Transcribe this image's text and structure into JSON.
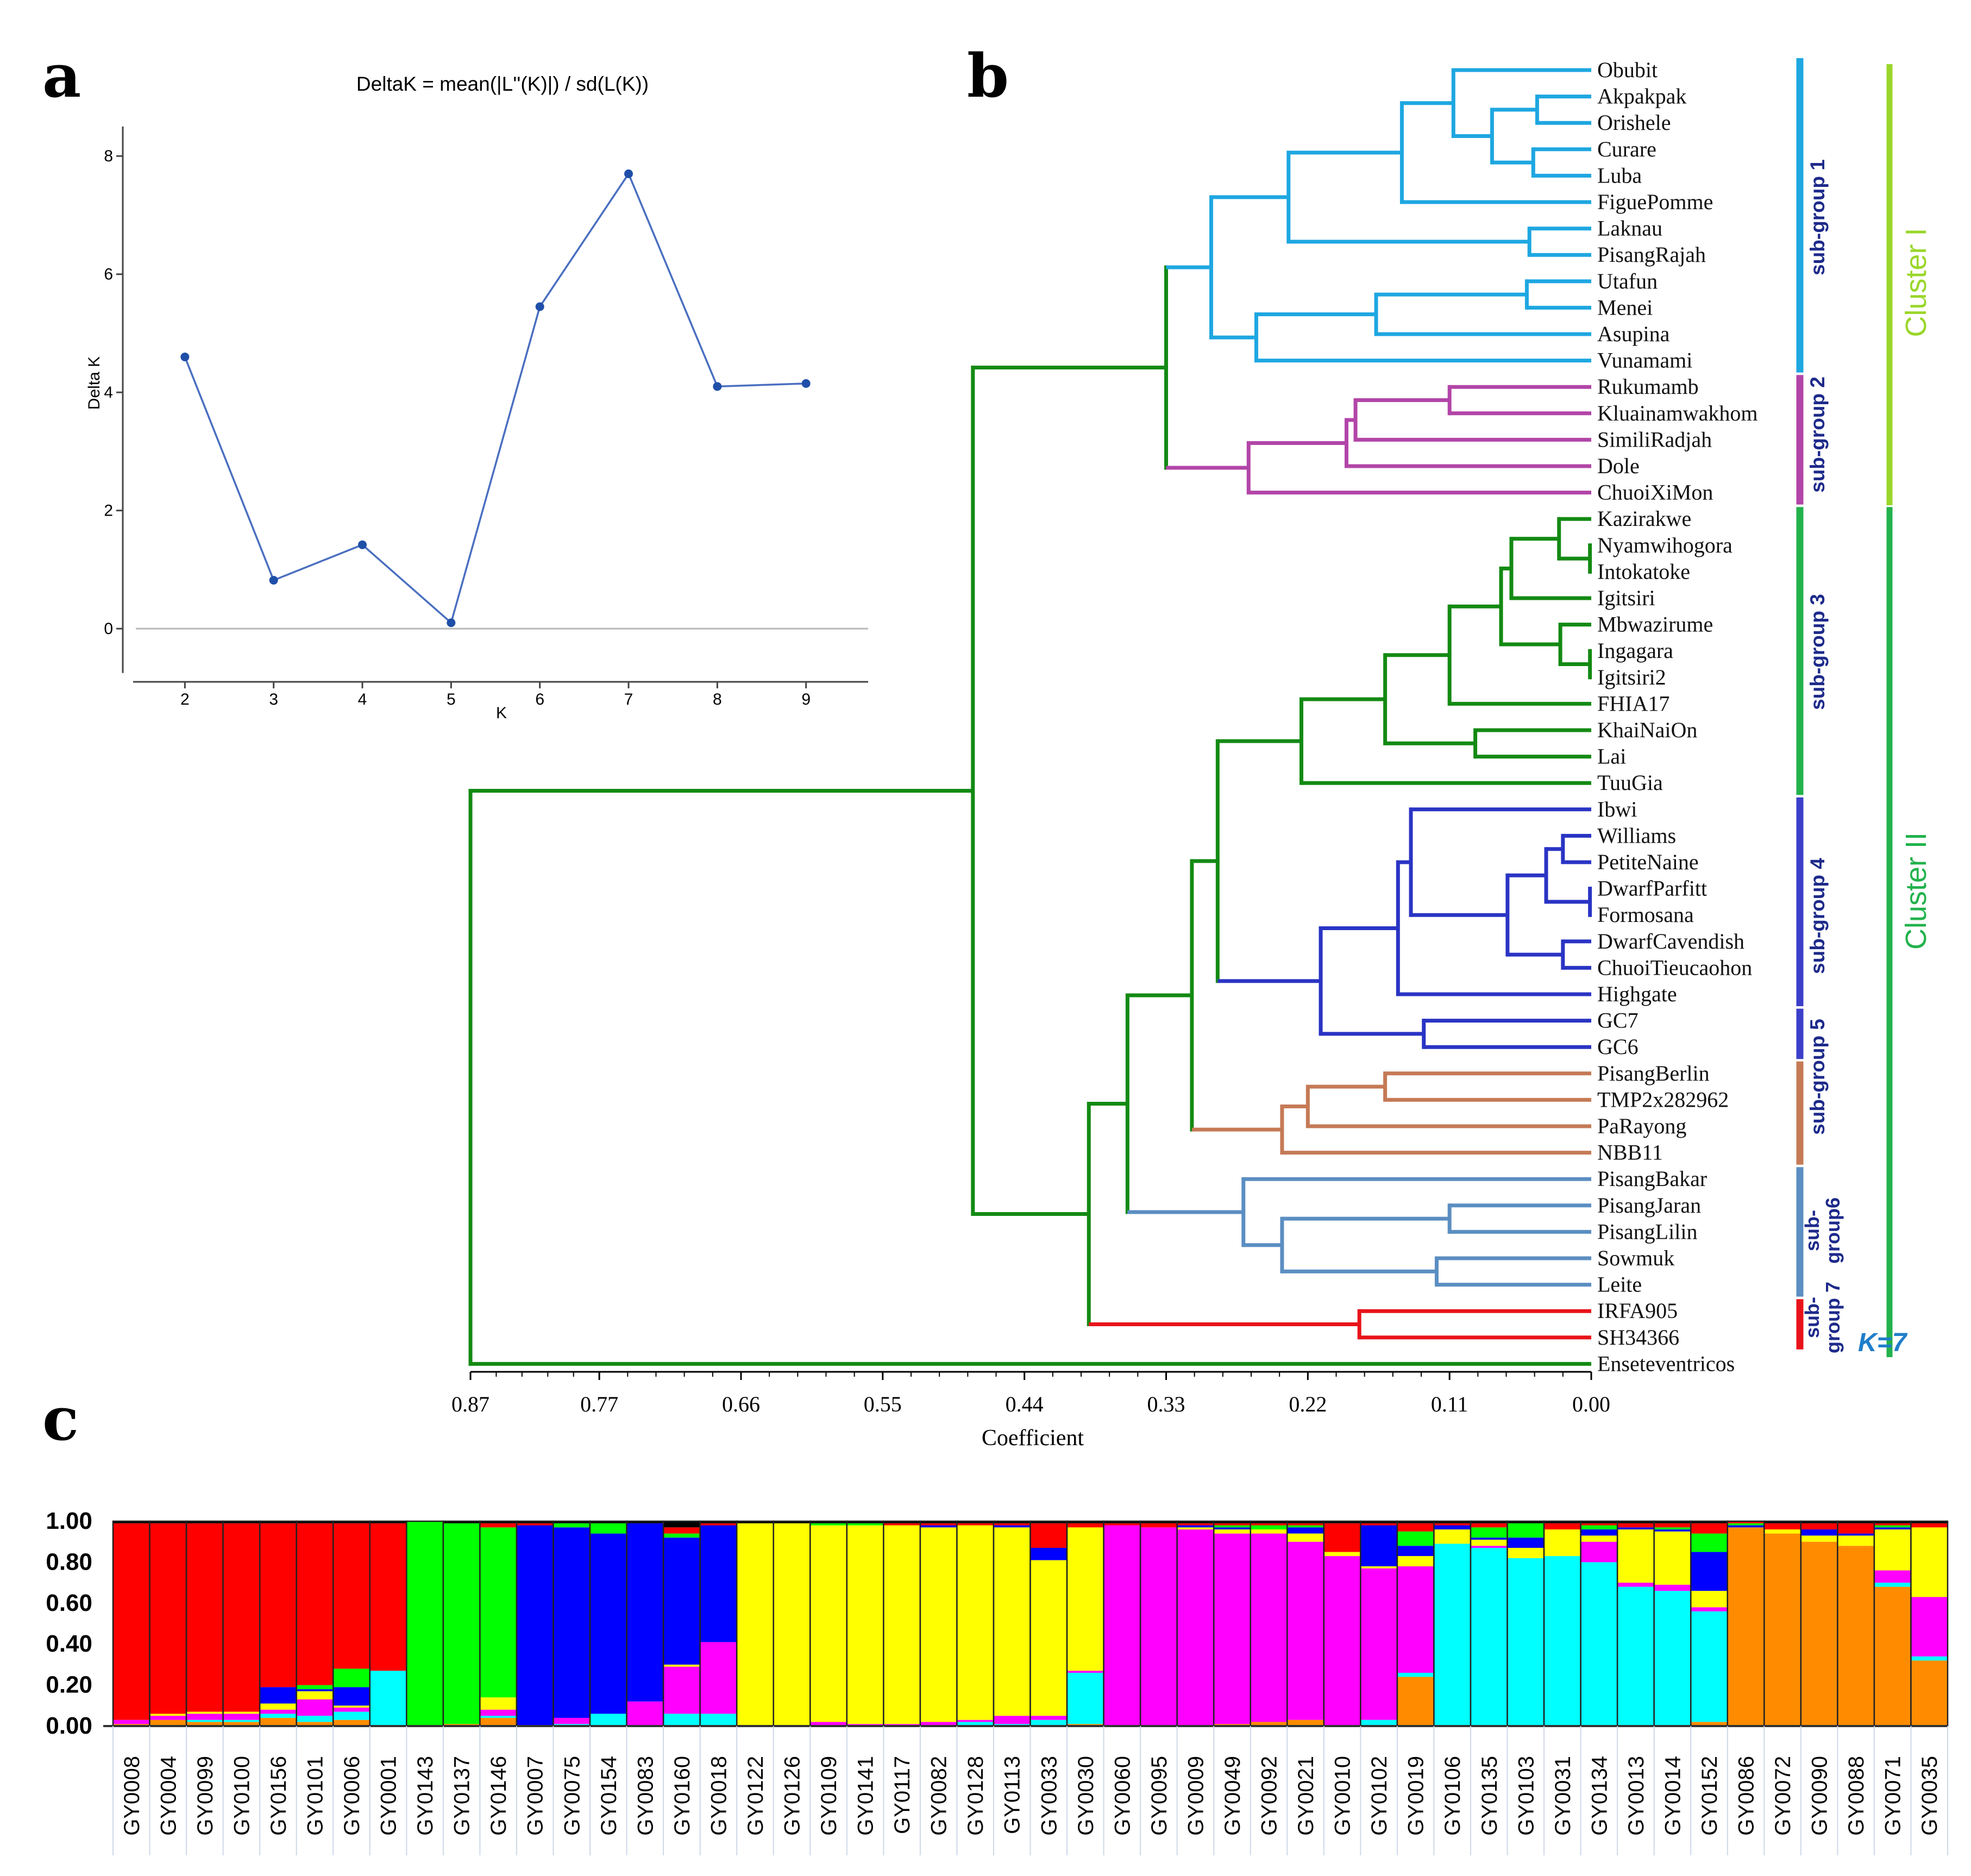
{
  "panels": {
    "a": "a",
    "b": "b",
    "c": "c"
  },
  "chart_data": [
    {
      "type": "line",
      "panel": "a",
      "title": "DeltaK = mean(|L''(K)|) / sd(L(K))",
      "xlabel": "K",
      "ylabel": "Delta K",
      "x": [
        2,
        3,
        4,
        5,
        6,
        7,
        8,
        9
      ],
      "y": [
        4.6,
        0.82,
        1.42,
        0.1,
        5.45,
        7.7,
        4.1,
        4.15
      ],
      "xlim": [
        1.3,
        9.7
      ],
      "ylim": [
        -0.9,
        8.6
      ],
      "yticks": [
        0,
        2,
        4,
        6,
        8
      ],
      "xticks": [
        2,
        3,
        4,
        5,
        6,
        7,
        8,
        9
      ],
      "line_color": "#4a6fc0"
    },
    {
      "type": "dendrogram",
      "panel": "b",
      "xlabel": "Coefficient",
      "xticks": [
        "0.87",
        "0.77",
        "0.66",
        "0.55",
        "0.44",
        "0.33",
        "0.22",
        "0.11",
        "0.00"
      ],
      "xlim": [
        0.87,
        0.0
      ],
      "leaves": [
        "Obubit",
        "Akpakpak",
        "Orishele",
        "Curare",
        "Luba",
        "FiguePomme",
        "Laknau",
        "PisangRajah",
        "Utafun",
        "Menei",
        "Asupina",
        "Vunamami",
        "Rukumamb",
        "Kluainamwakhom",
        "SimiliRadjah",
        "Dole",
        "ChuoiXiMon",
        "Kazirakwe",
        "Nyamwihogora",
        "Intokatoke",
        "Igitsiri",
        "Mbwazirume",
        "Ingagara",
        "Igitsiri2",
        "FHIA17",
        "KhaiNaiOn",
        "Lai",
        "TuuGia",
        "Ibwi",
        "Williams",
        "PetiteNaine",
        "DwarfParfitt",
        "Formosana",
        "DwarfCavendish",
        "ChuoiTieucaohon",
        "Highgate",
        "GC7",
        "GC6",
        "PisangBerlin",
        "TMP2x282962",
        "PaRayong",
        "NBB11",
        "PisangBakar",
        "PisangJaran",
        "PisangLilin",
        "Sowmuk",
        "Leite",
        "IRFA905",
        "SH34366",
        "Enseteventricos"
      ],
      "colors": {
        "sg1": "#1ea7e1",
        "sg2": "#b245a8",
        "green": "#138a13",
        "sg4": "#2a34c4",
        "sg5": "#c57a56",
        "sg6": "#5b8ec2",
        "sg7": "#e8131a"
      },
      "groups": [
        {
          "label": "sub-group 1",
          "first": 0,
          "last": 11,
          "color": "#1ea7e1"
        },
        {
          "label": "sub-group 2",
          "first": 12,
          "last": 16,
          "color": "#b245a8"
        },
        {
          "label": "sub-group 3",
          "first": 17,
          "last": 27,
          "color": "#22b24c"
        },
        {
          "label": "sub-group 4",
          "first": 28,
          "last": 35,
          "color": "#3c3fc8"
        },
        {
          "label": "sub-group 5",
          "first": 36,
          "last": 37,
          "color": "#3c3fc8"
        },
        {
          "label": "sub-group 5",
          "first": 38,
          "last": 41,
          "color": "#c57a56"
        },
        {
          "label": "sub-group6",
          "first": 42,
          "last": 46,
          "color": "#5b8ec2"
        },
        {
          "label": "sub-group 7",
          "first": 47,
          "last": 48,
          "color": "#e8131a"
        }
      ],
      "clusters": [
        {
          "label": "Cluster I",
          "first": 0,
          "last": 16,
          "color": "#9ad62a"
        },
        {
          "label": "Cluster II",
          "first": 17,
          "last": 49,
          "color": "#22b24c"
        }
      ]
    },
    {
      "type": "bar",
      "stacked": true,
      "panel": "c",
      "title": "K=7",
      "yticks": [
        "1.00",
        "0.80",
        "0.60",
        "0.40",
        "0.20",
        "0.00"
      ],
      "ylim": [
        0,
        1
      ],
      "series_colors": [
        "#ff8c00",
        "#00ffff",
        "#ff00ff",
        "#ffff00",
        "#0000ff",
        "#00ff00",
        "#ff0000",
        "#000000"
      ],
      "categories": [
        "GY0008",
        "GY0004",
        "GY0099",
        "GY0100",
        "GY0156",
        "GY0101",
        "GY0006",
        "GY0001",
        "GY0143",
        "GY0137",
        "GY0146",
        "GY0007",
        "GY0075",
        "GY0154",
        "GY0083",
        "GY0160",
        "GY0018",
        "GY0122",
        "GY0126",
        "GY0109",
        "GY0141",
        "GY0117",
        "GY0082",
        "GY0128",
        "GY0113",
        "GY0033",
        "GY0030",
        "GY0060",
        "GY0095",
        "GY0009",
        "GY0049",
        "GY0092",
        "GY0021",
        "GY0010",
        "GY0102",
        "GY0019",
        "GY0106",
        "GY0135",
        "GY0103",
        "GY0031",
        "GY0134",
        "GY0013",
        "GY0014",
        "GY0152",
        "GY0086",
        "GY0072",
        "GY0090",
        "GY0088",
        "GY0071",
        "GY0035"
      ],
      "values": [
        [
          0.01,
          0,
          0.02,
          0,
          0,
          0,
          0.96,
          0.01
        ],
        [
          0.03,
          0,
          0.02,
          0.01,
          0,
          0,
          0.93,
          0.01
        ],
        [
          0.02,
          0.01,
          0.03,
          0.01,
          0,
          0,
          0.92,
          0.01
        ],
        [
          0.02,
          0.01,
          0.03,
          0.01,
          0,
          0,
          0.92,
          0.01
        ],
        [
          0.04,
          0.02,
          0.02,
          0.03,
          0.08,
          0,
          0.8,
          0.01
        ],
        [
          0.02,
          0.03,
          0.08,
          0.04,
          0.01,
          0.02,
          0.79,
          0.01
        ],
        [
          0.03,
          0.04,
          0.02,
          0.01,
          0.09,
          0.09,
          0.71,
          0.01
        ],
        [
          0,
          0.27,
          0,
          0,
          0,
          0,
          0.72,
          0.01
        ],
        [
          0,
          0,
          0,
          0,
          0,
          1.0,
          0,
          0
        ],
        [
          0.01,
          0,
          0,
          0,
          0,
          0.98,
          0,
          0.01
        ],
        [
          0.04,
          0.01,
          0.03,
          0.06,
          0,
          0.83,
          0.02,
          0.01
        ],
        [
          0,
          0,
          0,
          0,
          0.98,
          0,
          0.01,
          0.01
        ],
        [
          0,
          0.01,
          0.03,
          0,
          0.93,
          0.02,
          0,
          0.01
        ],
        [
          0,
          0.06,
          0,
          0,
          0.88,
          0.05,
          0,
          0.01
        ],
        [
          0,
          0,
          0.12,
          0,
          0.87,
          0,
          0,
          0.01
        ],
        [
          0,
          0.06,
          0.23,
          0.01,
          0.62,
          0.02,
          0.03,
          0.03
        ],
        [
          0,
          0.06,
          0.35,
          0,
          0.57,
          0,
          0.01,
          0.01
        ],
        [
          0,
          0,
          0,
          0.99,
          0,
          0,
          0,
          0.01
        ],
        [
          0,
          0,
          0,
          0.99,
          0,
          0,
          0,
          0.01
        ],
        [
          0,
          0,
          0.02,
          0.96,
          0,
          0.01,
          0,
          0.01
        ],
        [
          0,
          0,
          0.01,
          0.97,
          0,
          0.01,
          0,
          0.01
        ],
        [
          0,
          0,
          0.01,
          0.97,
          0,
          0,
          0.01,
          0.01
        ],
        [
          0,
          0,
          0.02,
          0.95,
          0.01,
          0,
          0.01,
          0.01
        ],
        [
          0,
          0.02,
          0.01,
          0.95,
          0,
          0,
          0.01,
          0.01
        ],
        [
          0,
          0.01,
          0.04,
          0.92,
          0.01,
          0,
          0.01,
          0.01
        ],
        [
          0,
          0.03,
          0.02,
          0.76,
          0.06,
          0,
          0.12,
          0.01
        ],
        [
          0.01,
          0.25,
          0.01,
          0.7,
          0,
          0,
          0.02,
          0.01
        ],
        [
          0,
          0,
          0.98,
          0,
          0,
          0,
          0.01,
          0.01
        ],
        [
          0,
          0,
          0.97,
          0,
          0,
          0,
          0.02,
          0.01
        ],
        [
          0,
          0,
          0.96,
          0.01,
          0.01,
          0,
          0.01,
          0.01
        ],
        [
          0.01,
          0,
          0.93,
          0.02,
          0.01,
          0.01,
          0.01,
          0.01
        ],
        [
          0.02,
          0,
          0.92,
          0.02,
          0,
          0.02,
          0.01,
          0.01
        ],
        [
          0.03,
          0,
          0.87,
          0.04,
          0.03,
          0.01,
          0.01,
          0.01
        ],
        [
          0,
          0,
          0.83,
          0.02,
          0,
          0,
          0.14,
          0.01
        ],
        [
          0,
          0.03,
          0.74,
          0.01,
          0.2,
          0,
          0.01,
          0.01
        ],
        [
          0.24,
          0.02,
          0.52,
          0.05,
          0.05,
          0.07,
          0.04,
          0.01
        ],
        [
          0,
          0.89,
          0,
          0.07,
          0.02,
          0,
          0.01,
          0.01
        ],
        [
          0,
          0.87,
          0.01,
          0.03,
          0.01,
          0.05,
          0.02,
          0.01
        ],
        [
          0,
          0.82,
          0,
          0.05,
          0.05,
          0.07,
          0,
          0.01
        ],
        [
          0,
          0.83,
          0,
          0.13,
          0,
          0,
          0.03,
          0.01
        ],
        [
          0,
          0.8,
          0.1,
          0.03,
          0.03,
          0.02,
          0.01,
          0.01
        ],
        [
          0,
          0.68,
          0.02,
          0.26,
          0.01,
          0,
          0.02,
          0.01
        ],
        [
          0,
          0.66,
          0.03,
          0.26,
          0.01,
          0.01,
          0.02,
          0.01
        ],
        [
          0.02,
          0.54,
          0.02,
          0.08,
          0.19,
          0.09,
          0.05,
          0.01
        ],
        [
          0.97,
          0,
          0,
          0,
          0.01,
          0.01,
          0.01,
          0
        ],
        [
          0.94,
          0,
          0,
          0.02,
          0,
          0,
          0.03,
          0.01
        ],
        [
          0.9,
          0,
          0,
          0.03,
          0.03,
          0,
          0.03,
          0.01
        ],
        [
          0.88,
          0,
          0,
          0.05,
          0.01,
          0,
          0.05,
          0.01
        ],
        [
          0.68,
          0.02,
          0.06,
          0.2,
          0.01,
          0.01,
          0.01,
          0.01
        ],
        [
          0.32,
          0.02,
          0.29,
          0.34,
          0,
          0,
          0.02,
          0.01
        ]
      ]
    }
  ]
}
